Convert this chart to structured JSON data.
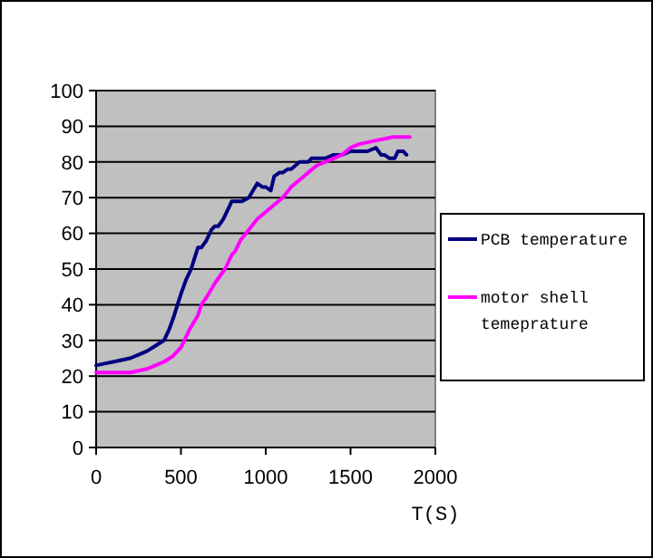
{
  "chart_data": {
    "type": "line",
    "xlabel": "T(S)",
    "xlim": [
      0,
      2000
    ],
    "xticks": [
      0,
      500,
      1000,
      1500,
      2000
    ],
    "ylim": [
      0,
      100
    ],
    "yticks": [
      0,
      10,
      20,
      30,
      40,
      50,
      60,
      70,
      80,
      90,
      100
    ],
    "grid": "y",
    "legend": "right",
    "line_style": "solid",
    "series": [
      {
        "name": "PCB temperature",
        "color": "#000080",
        "x": [
          0,
          50,
          100,
          150,
          200,
          250,
          300,
          350,
          400,
          430,
          460,
          480,
          500,
          530,
          560,
          580,
          600,
          620,
          650,
          680,
          700,
          720,
          750,
          780,
          800,
          830,
          860,
          900,
          950,
          980,
          1000,
          1030,
          1050,
          1080,
          1100,
          1130,
          1150,
          1200,
          1250,
          1270,
          1300,
          1350,
          1400,
          1450,
          1500,
          1550,
          1600,
          1650,
          1680,
          1700,
          1730,
          1760,
          1780,
          1810,
          1830
        ],
        "values": [
          23,
          23.5,
          24,
          24.5,
          25,
          26,
          27,
          28.5,
          30,
          33,
          37,
          40,
          43,
          47,
          50,
          53,
          56,
          56,
          58,
          61,
          62,
          62,
          64,
          67,
          69,
          69,
          69,
          70,
          74,
          73,
          73,
          72,
          76,
          77,
          77,
          78,
          78,
          80,
          80,
          81,
          81,
          81,
          82,
          82,
          83,
          83,
          83,
          84,
          82,
          82,
          81,
          81,
          83,
          83,
          82
        ]
      },
      {
        "name": "motor shell temeprature",
        "color": "#ff00ff",
        "x": [
          0,
          100,
          200,
          250,
          300,
          350,
          400,
          450,
          500,
          520,
          550,
          600,
          620,
          650,
          700,
          760,
          800,
          820,
          850,
          900,
          950,
          1000,
          1050,
          1100,
          1150,
          1200,
          1250,
          1300,
          1350,
          1400,
          1450,
          1500,
          1550,
          1600,
          1650,
          1700,
          1750,
          1800,
          1850
        ],
        "values": [
          21,
          21,
          21,
          21.5,
          22,
          23,
          24,
          25.5,
          28,
          30,
          33,
          37,
          40,
          42,
          46,
          50,
          54,
          55,
          58,
          61,
          64,
          66,
          68,
          70,
          73,
          75,
          77,
          79,
          80,
          81,
          82,
          84,
          85,
          85.5,
          86,
          86.5,
          87,
          87,
          87
        ]
      }
    ]
  }
}
